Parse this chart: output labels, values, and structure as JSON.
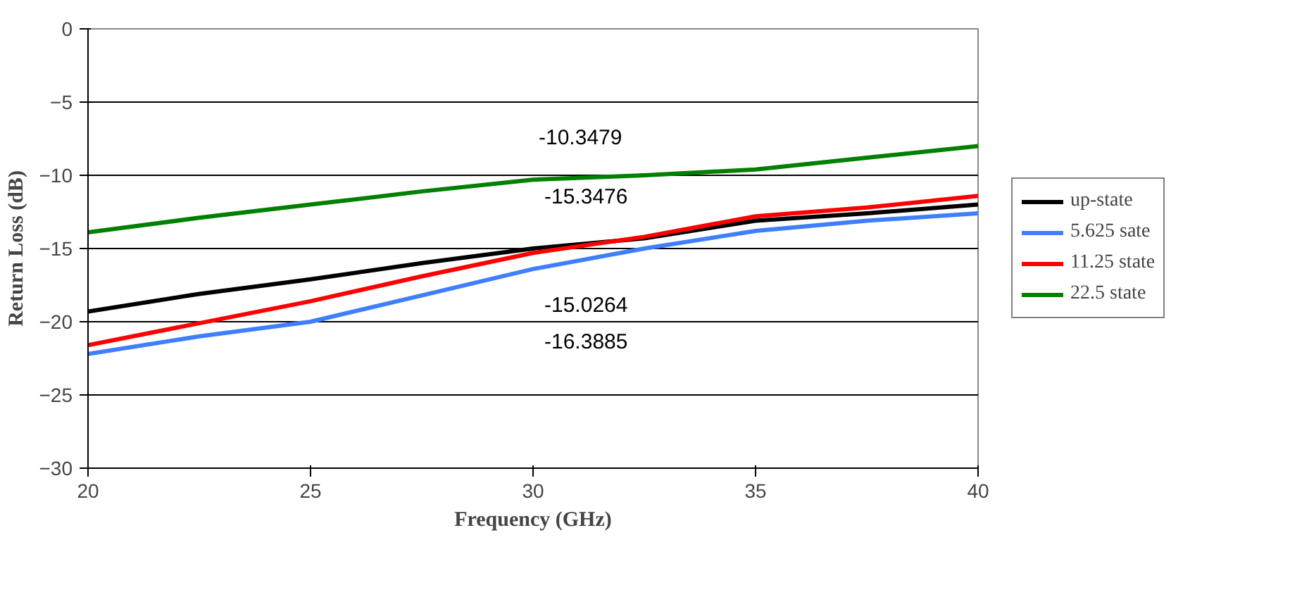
{
  "chart_data": {
    "type": "line",
    "xlabel": "Frequency (GHz)",
    "ylabel": "Return Loss (dB)",
    "x": [
      20,
      22.5,
      25,
      27.5,
      30,
      32.5,
      35,
      37.5,
      40
    ],
    "series": [
      {
        "name": "up-state",
        "color": "#000000",
        "values": [
          -19.3,
          -18.1,
          -17.1,
          -16.0,
          -15.0,
          -14.3,
          -13.1,
          -12.6,
          -12.0
        ]
      },
      {
        "name": "5.625 sate",
        "color": "#3f7fff",
        "values": [
          -22.2,
          -21.0,
          -20.0,
          -18.2,
          -16.4,
          -15.0,
          -13.8,
          -13.1,
          -12.6
        ]
      },
      {
        "name": "11.25 state",
        "color": "#ff0000",
        "values": [
          -21.6,
          -20.1,
          -18.6,
          -16.9,
          -15.3,
          -14.2,
          -12.8,
          -12.2,
          -11.4
        ]
      },
      {
        "name": "22.5 state",
        "color": "#008000",
        "values": [
          -13.9,
          -12.9,
          -12.0,
          -11.1,
          -10.3,
          -10.0,
          -9.6,
          -8.8,
          -8.0
        ]
      }
    ],
    "annotations": [
      "-10.3479",
      "-15.3476",
      "-15.0264",
      "-16.3885"
    ],
    "xlim": [
      20,
      40
    ],
    "ylim": [
      -30,
      0
    ],
    "xticks": [
      20,
      25,
      30,
      35,
      40
    ],
    "yticks": [
      -30,
      -25,
      -20,
      -15,
      -10,
      -5,
      0
    ],
    "grid": "y",
    "legend": "right",
    "marker": "none",
    "line_style": "solid"
  }
}
